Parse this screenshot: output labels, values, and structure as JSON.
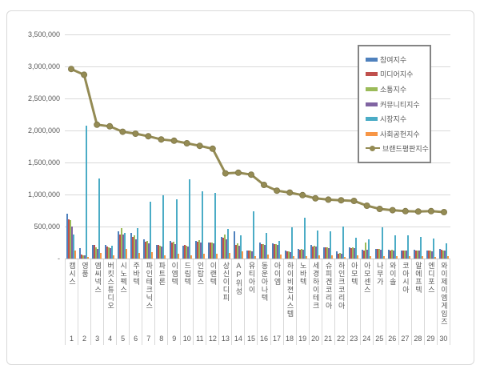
{
  "chart_data": {
    "type": "bar+line",
    "title": "",
    "categories": [
      "캠시스",
      "영풍",
      "엠씨넥스",
      "버킷스튜디오",
      "시노펙스",
      "주바텍",
      "파인테크닉스",
      "파트론",
      "이엠텍",
      "드림텍",
      "인탑스",
      "이랜텍",
      "상신이디피",
      "AP위성",
      "유티아이",
      "동운아나텍",
      "아이엠",
      "하이비젼시스템",
      "노바텍",
      "세경하이테크",
      "슈피겐코리아",
      "하인크코리아",
      "아모텍",
      "아모센스",
      "나무가",
      "와이솔",
      "코아시아",
      "알에프텍",
      "엔디포스",
      "와이제이엠게임즈"
    ],
    "ranks": [
      "1",
      "2",
      "3",
      "4",
      "5",
      "6",
      "7",
      "8",
      "9",
      "10",
      "11",
      "12",
      "13",
      "14",
      "15",
      "16",
      "17",
      "18",
      "19",
      "20",
      "21",
      "22",
      "23",
      "24",
      "25",
      "26",
      "27",
      "28",
      "29",
      "30"
    ],
    "series": [
      {
        "name": "참여지수",
        "type": "bar",
        "color": "#4f81bd",
        "values": [
          700000,
          160000,
          215000,
          210000,
          430000,
          400000,
          300000,
          210000,
          280000,
          200000,
          280000,
          255000,
          340000,
          420000,
          130000,
          255000,
          235000,
          120000,
          150000,
          210000,
          180000,
          110000,
          175000,
          140000,
          155000,
          140000,
          130000,
          135000,
          130000,
          150000
        ]
      },
      {
        "name": "미디어지수",
        "type": "bar",
        "color": "#c0504d",
        "values": [
          610000,
          60000,
          215000,
          190000,
          370000,
          340000,
          260000,
          215000,
          250000,
          215000,
          265000,
          245000,
          325000,
          215000,
          125000,
          220000,
          225000,
          110000,
          140000,
          190000,
          170000,
          80000,
          165000,
          130000,
          145000,
          130000,
          125000,
          125000,
          120000,
          140000
        ]
      },
      {
        "name": "소통지수",
        "type": "bar",
        "color": "#9bbb59",
        "values": [
          600000,
          50000,
          175000,
          175000,
          470000,
          360000,
          275000,
          200000,
          260000,
          205000,
          285000,
          250000,
          380000,
          240000,
          130000,
          230000,
          230000,
          115000,
          145000,
          200000,
          175000,
          85000,
          170000,
          255000,
          150000,
          135000,
          128000,
          130000,
          125000,
          130000
        ]
      },
      {
        "name": "커뮤니티지수",
        "type": "bar",
        "color": "#8064a2",
        "values": [
          500000,
          45000,
          150000,
          160000,
          380000,
          300000,
          240000,
          190000,
          230000,
          185000,
          250000,
          235000,
          300000,
          200000,
          115000,
          210000,
          215000,
          105000,
          135000,
          185000,
          165000,
          75000,
          160000,
          135000,
          140000,
          125000,
          120000,
          120000,
          115000,
          125000
        ]
      },
      {
        "name": "시장지수",
        "type": "bar",
        "color": "#4bacc6",
        "values": [
          380000,
          2080000,
          1250000,
          200000,
          400000,
          475000,
          890000,
          990000,
          925000,
          1240000,
          1050000,
          1025000,
          465000,
          360000,
          735000,
          400000,
          280000,
          485000,
          640000,
          440000,
          420000,
          505000,
          320000,
          300000,
          485000,
          360000,
          360000,
          340000,
          315000,
          235000
        ]
      },
      {
        "name": "사회공헌지수",
        "type": "bar",
        "color": "#f79646",
        "values": [
          130000,
          30000,
          90000,
          55000,
          150000,
          90000,
          100000,
          55000,
          80000,
          55000,
          75000,
          70000,
          90000,
          110000,
          40000,
          60000,
          60000,
          35000,
          40000,
          55000,
          50000,
          30000,
          45000,
          40000,
          40000,
          35000,
          35000,
          35000,
          30000,
          35000
        ]
      },
      {
        "name": "브랜드평판지수",
        "type": "line",
        "color": "#948b54",
        "values": [
          2960000,
          2870000,
          2090000,
          2065000,
          1980000,
          1950000,
          1910000,
          1860000,
          1840000,
          1800000,
          1760000,
          1715000,
          1330000,
          1340000,
          1310000,
          1150000,
          1060000,
          1030000,
          990000,
          940000,
          920000,
          910000,
          900000,
          825000,
          775000,
          755000,
          740000,
          735000,
          740000,
          725000
        ]
      }
    ],
    "y_ticks": [
      {
        "label": "3,500,000",
        "value": 3500000
      },
      {
        "label": "3,000,000",
        "value": 3000000
      },
      {
        "label": "2,500,000",
        "value": 2500000
      },
      {
        "label": "2,000,000",
        "value": 2000000
      },
      {
        "label": "1,500,000",
        "value": 1500000
      },
      {
        "label": "1,000,000",
        "value": 1000000
      },
      {
        "label": "500,000",
        "value": 500000
      },
      {
        "label": "-",
        "value": 0
      }
    ],
    "ylim": [
      0,
      3500000
    ],
    "grid": true,
    "legend_position": "inside-top-right"
  },
  "colors": {
    "grid": "#d9d9d9",
    "axis_text": "#595959",
    "frame_border": "#d9d9d9",
    "legend_border": "#848484"
  }
}
